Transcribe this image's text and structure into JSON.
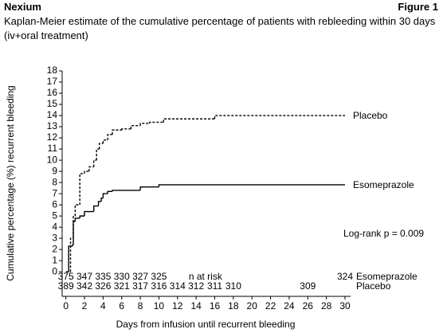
{
  "header": {
    "left": "Nexium",
    "right": "Figure 1"
  },
  "chart_data": {
    "type": "step",
    "title": "Kaplan-Meier estimate of the cumulative percentage of patients with rebleeding within 30 days (iv+oral treatment)",
    "x_label": "Days from infusion until recurrent bleeding",
    "y_label": "Cumulative percentage (%) recurrent bleeding",
    "xlim": [
      -0.4,
      30.6
    ],
    "xticks": [
      0,
      2,
      4,
      6,
      8,
      10,
      12,
      14,
      16,
      18,
      20,
      22,
      24,
      26,
      28,
      30
    ],
    "ylim": [
      -2.2,
      18
    ],
    "yticks": [
      0,
      1,
      2,
      3,
      4,
      5,
      6,
      7,
      8,
      9,
      10,
      11,
      12,
      13,
      14,
      15,
      16,
      17,
      18
    ],
    "series": [
      {
        "name": "Placebo",
        "color": "#000000",
        "line_style": "dashed",
        "x": [
          0,
          0.5,
          0.8,
          1,
          1.5,
          2,
          2.5,
          3,
          3.3,
          3.6,
          4,
          4.5,
          5,
          6,
          7,
          8,
          9,
          10.5,
          16,
          30
        ],
        "values": [
          0,
          3,
          5,
          6,
          8.8,
          9,
          9.4,
          10,
          11,
          11.5,
          11.8,
          12.3,
          12.7,
          12.8,
          13.1,
          13.3,
          13.4,
          13.7,
          14,
          14
        ]
      },
      {
        "name": "Esomeprazole",
        "color": "#000000",
        "line_style": "solid",
        "x": [
          0,
          0.3,
          0.7,
          0.8,
          1,
          1.5,
          2,
          3,
          3.5,
          3.8,
          4,
          4.5,
          5,
          8,
          10,
          30
        ],
        "values": [
          0,
          2.3,
          2.4,
          4.5,
          4.8,
          5,
          5.4,
          5.9,
          6.3,
          6.6,
          7,
          7.2,
          7.3,
          7.6,
          7.8,
          7.8
        ]
      }
    ],
    "annotation": "Log-rank p = 0.009",
    "risk_table": {
      "title": "n at risk",
      "title_day": 15,
      "rows": [
        {
          "series": 1,
          "days": [
            0,
            2,
            4,
            6,
            8,
            10,
            30
          ],
          "counts": [
            "375",
            "347",
            "335",
            "330",
            "327",
            "325",
            "324"
          ]
        },
        {
          "series": 0,
          "days": [
            0,
            2,
            4,
            6,
            8,
            10,
            12,
            14,
            16,
            18,
            26
          ],
          "counts": [
            "389",
            "342",
            "326",
            "321",
            "317",
            "316",
            "314",
            "312",
            "311",
            "310",
            "309"
          ]
        }
      ]
    }
  }
}
